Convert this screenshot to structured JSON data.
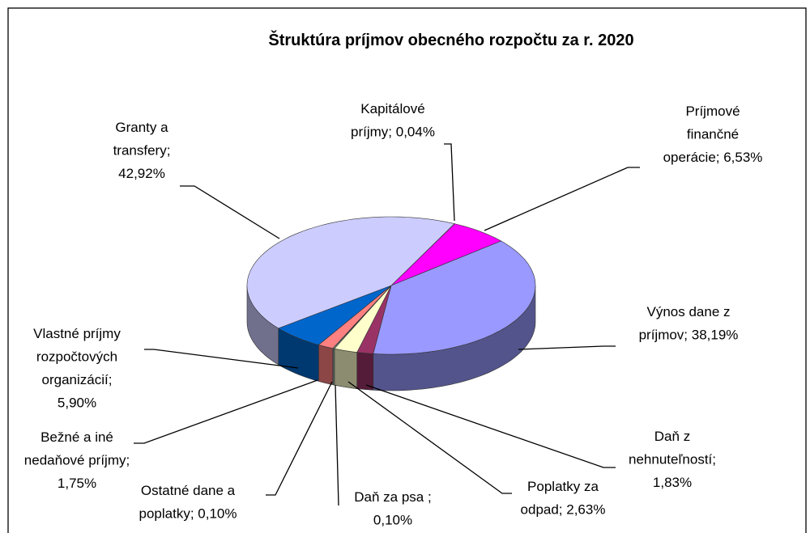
{
  "chart_data": {
    "type": "pie3d",
    "title": "Štruktúra príjmov obecného  rozpočtu za r. 2020",
    "label_separator": "; ",
    "categories": [
      "Kapitálové príjmy",
      "Príjmové finančné operácie",
      "Výnos dane z príjmov",
      "Daň z nehnuteľností",
      "Poplatky za odpad",
      "Daň za psa ",
      "Ostatné dane a poplatky",
      "Bežné  a iné nedaňové príjmy",
      "Vlastné príjmy rozpočtových organizácií",
      "Granty a transfery"
    ],
    "values": [
      0.04,
      6.53,
      38.19,
      1.83,
      2.63,
      0.1,
      0.1,
      1.75,
      5.9,
      42.92
    ],
    "value_labels": [
      "0,04%",
      "6,53%",
      "38,19%",
      "1,83%",
      "2,63%",
      "0,10%",
      "0,10%",
      "1,75%",
      "5,90%",
      "42,92%"
    ],
    "colors": [
      "#00ccff",
      "#ff00ff",
      "#9999ff",
      "#993366",
      "#ffffcc",
      "#ccffcc",
      "#ccffff",
      "#ff8080",
      "#0066cc",
      "#ccccff"
    ]
  }
}
